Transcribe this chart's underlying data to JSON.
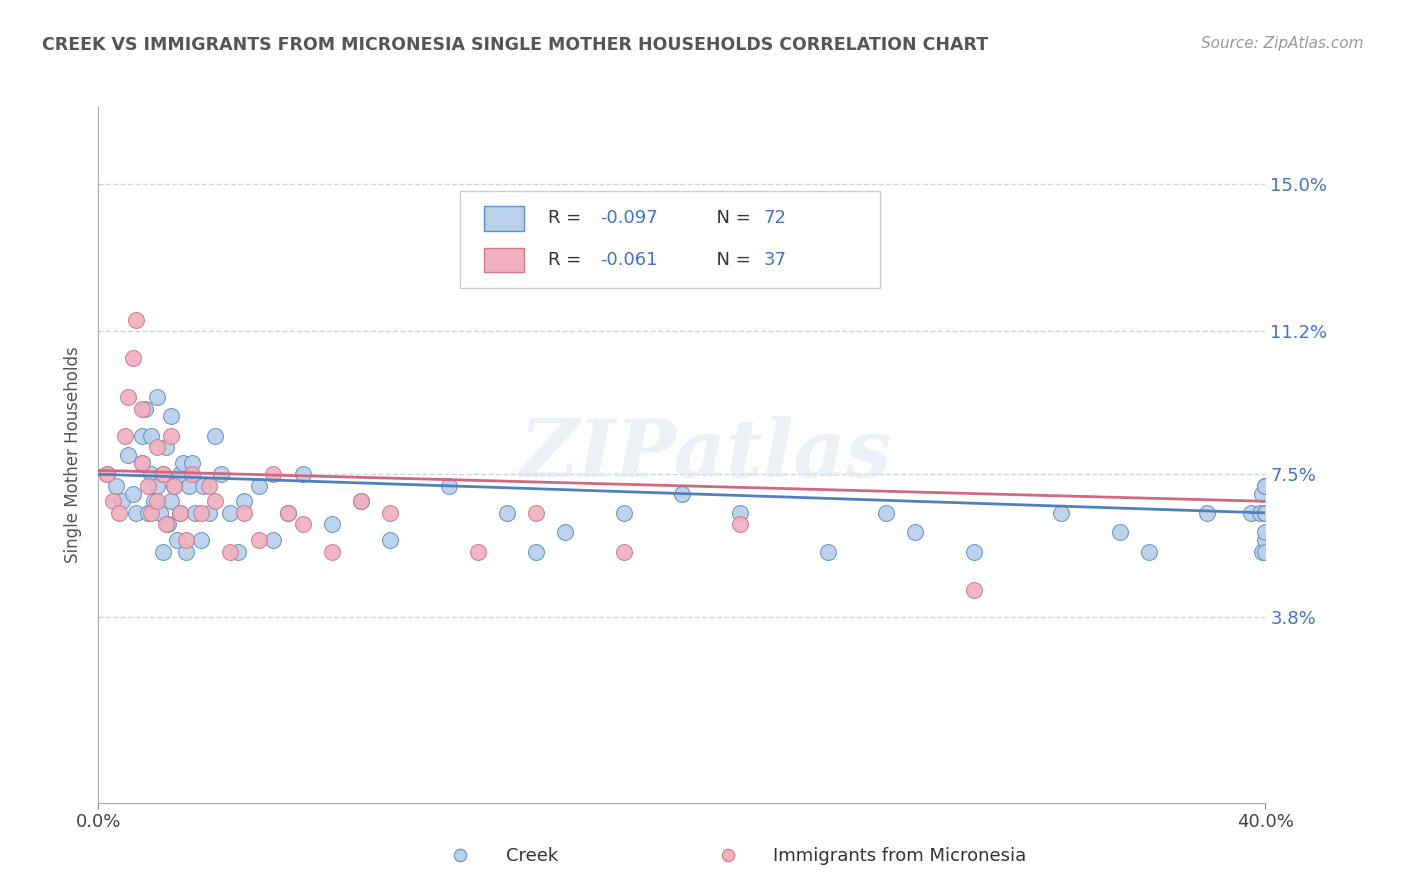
{
  "title": "CREEK VS IMMIGRANTS FROM MICRONESIA SINGLE MOTHER HOUSEHOLDS CORRELATION CHART",
  "source_text": "Source: ZipAtlas.com",
  "ylabel": "Single Mother Households",
  "xlim": [
    0.0,
    0.4
  ],
  "ylim": [
    -0.01,
    0.17
  ],
  "ytick_positions": [
    0.038,
    0.075,
    0.112,
    0.15
  ],
  "ytick_labels": [
    "3.8%",
    "7.5%",
    "11.2%",
    "15.0%"
  ],
  "blue_fill": "#b8d0ea",
  "blue_edge": "#6090c8",
  "pink_fill": "#f0b0c0",
  "pink_edge": "#d07888",
  "blue_line_color": "#5080c0",
  "pink_line_color": "#d06880",
  "r_value_color": "#4472c4",
  "watermark": "ZIPatlas",
  "background_color": "#ffffff",
  "grid_color": "#c8d4e8",
  "creek_x": [
    0.003,
    0.006,
    0.008,
    0.01,
    0.012,
    0.013,
    0.015,
    0.015,
    0.016,
    0.017,
    0.018,
    0.018,
    0.019,
    0.02,
    0.02,
    0.021,
    0.022,
    0.022,
    0.023,
    0.024,
    0.025,
    0.025,
    0.026,
    0.027,
    0.028,
    0.028,
    0.029,
    0.03,
    0.031,
    0.032,
    0.033,
    0.035,
    0.036,
    0.038,
    0.04,
    0.042,
    0.045,
    0.048,
    0.05,
    0.055,
    0.06,
    0.065,
    0.07,
    0.08,
    0.09,
    0.1,
    0.12,
    0.14,
    0.15,
    0.16,
    0.18,
    0.2,
    0.22,
    0.25,
    0.27,
    0.28,
    0.3,
    0.33,
    0.35,
    0.36,
    0.38,
    0.395,
    0.398,
    0.399,
    0.399,
    0.4,
    0.4,
    0.4,
    0.4,
    0.4,
    0.4,
    0.4
  ],
  "creek_y": [
    0.075,
    0.072,
    0.068,
    0.08,
    0.07,
    0.065,
    0.085,
    0.078,
    0.092,
    0.065,
    0.075,
    0.085,
    0.068,
    0.095,
    0.072,
    0.065,
    0.055,
    0.075,
    0.082,
    0.062,
    0.09,
    0.068,
    0.072,
    0.058,
    0.075,
    0.065,
    0.078,
    0.055,
    0.072,
    0.078,
    0.065,
    0.058,
    0.072,
    0.065,
    0.085,
    0.075,
    0.065,
    0.055,
    0.068,
    0.072,
    0.058,
    0.065,
    0.075,
    0.062,
    0.068,
    0.058,
    0.072,
    0.065,
    0.055,
    0.06,
    0.065,
    0.07,
    0.065,
    0.055,
    0.065,
    0.06,
    0.055,
    0.065,
    0.06,
    0.055,
    0.065,
    0.065,
    0.065,
    0.07,
    0.055,
    0.072,
    0.058,
    0.065,
    0.055,
    0.072,
    0.06,
    0.065
  ],
  "micronesia_x": [
    0.003,
    0.005,
    0.007,
    0.009,
    0.01,
    0.012,
    0.013,
    0.015,
    0.015,
    0.017,
    0.018,
    0.02,
    0.02,
    0.022,
    0.023,
    0.025,
    0.026,
    0.028,
    0.03,
    0.032,
    0.035,
    0.038,
    0.04,
    0.045,
    0.05,
    0.055,
    0.06,
    0.065,
    0.07,
    0.08,
    0.09,
    0.1,
    0.13,
    0.15,
    0.18,
    0.22,
    0.3
  ],
  "micronesia_y": [
    0.075,
    0.068,
    0.065,
    0.085,
    0.095,
    0.105,
    0.115,
    0.092,
    0.078,
    0.072,
    0.065,
    0.082,
    0.068,
    0.075,
    0.062,
    0.085,
    0.072,
    0.065,
    0.058,
    0.075,
    0.065,
    0.072,
    0.068,
    0.055,
    0.065,
    0.058,
    0.075,
    0.065,
    0.062,
    0.055,
    0.068,
    0.065,
    0.055,
    0.065,
    0.055,
    0.062,
    0.045
  ]
}
